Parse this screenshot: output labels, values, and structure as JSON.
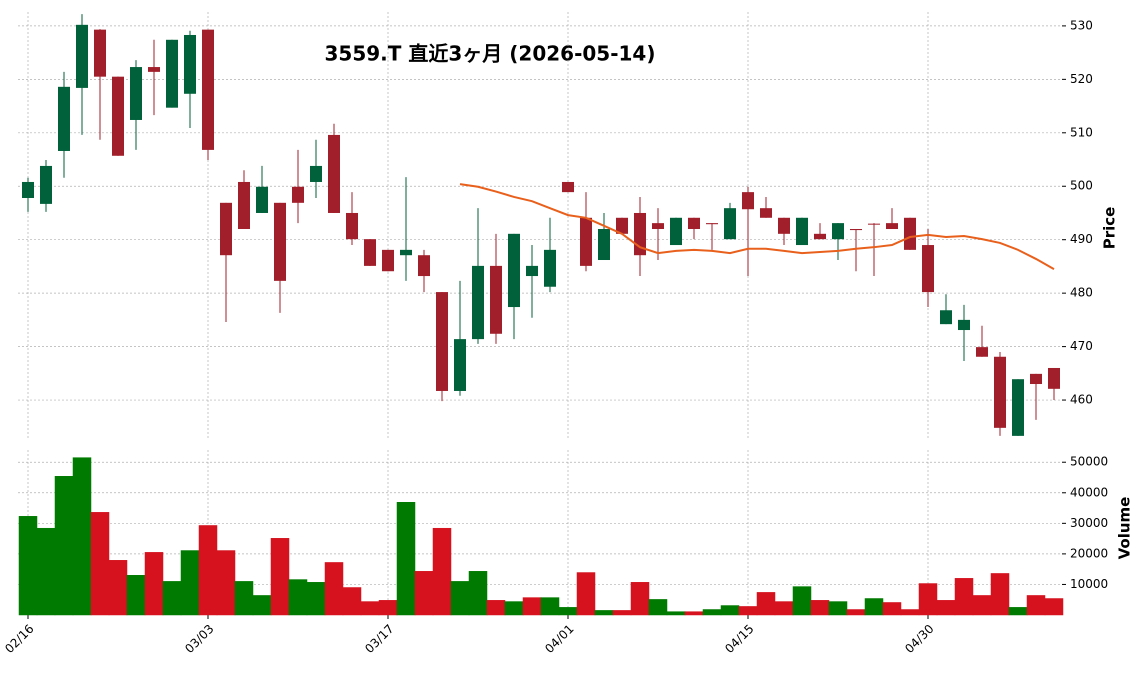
{
  "chart_data": {
    "type": "candlestick",
    "title": "3559.T  直近3ヶ月  (2026-05-14)",
    "categories": [
      "02/16",
      null,
      null,
      null,
      null,
      null,
      null,
      null,
      null,
      null,
      "03/03",
      null,
      null,
      null,
      null,
      null,
      null,
      null,
      null,
      null,
      "03/17",
      null,
      null,
      null,
      null,
      null,
      null,
      null,
      null,
      null,
      "04/01",
      null,
      null,
      null,
      null,
      null,
      null,
      null,
      null,
      null,
      "04/15",
      null,
      null,
      null,
      null,
      null,
      null,
      null,
      null,
      null,
      "04/30",
      null,
      null,
      null,
      null,
      null,
      null,
      null
    ],
    "open": [
      497.8,
      496.7,
      506.6,
      518.4,
      529.3,
      520.5,
      512.4,
      522.3,
      514.7,
      517.3,
      529.3,
      496.9,
      500.8,
      495.0,
      496.9,
      499.9,
      500.8,
      509.6,
      495.0,
      490.1,
      488.1,
      487.1,
      487.1,
      480.2,
      461.7,
      471.4,
      485.1,
      477.4,
      483.2,
      481.2,
      500.8,
      494.1,
      486.2,
      494.1,
      495.0,
      493.1,
      489.0,
      494.1,
      493.1,
      490.1,
      498.9,
      495.9,
      494.1,
      489.0,
      491.1,
      490.1,
      492.0,
      493.0,
      493.1,
      494.1,
      489.0,
      474.2,
      473.1,
      469.9,
      468.1,
      453.3,
      464.9,
      466.0
    ],
    "high": [
      501.6,
      504.9,
      521.4,
      532.2,
      529.4,
      520.5,
      523.6,
      527.4,
      527.4,
      529.1,
      529.3,
      496.9,
      503.0,
      503.8,
      496.9,
      506.8,
      508.7,
      511.7,
      498.9,
      490.1,
      488.1,
      501.7,
      488.1,
      480.2,
      482.3,
      495.9,
      491.1,
      491.1,
      489.0,
      494.1,
      500.8,
      498.9,
      495.0,
      494.1,
      498.0,
      495.9,
      494.1,
      494.1,
      493.1,
      496.9,
      499.9,
      498.0,
      494.1,
      494.1,
      493.1,
      493.1,
      492.0,
      493.1,
      495.9,
      494.1,
      492.0,
      479.8,
      477.8,
      473.9,
      469.0,
      463.9,
      464.9,
      466.0
    ],
    "low": [
      495.2,
      495.2,
      501.6,
      509.6,
      508.7,
      505.7,
      506.8,
      513.3,
      514.7,
      510.9,
      504.9,
      474.6,
      492.0,
      495.0,
      476.3,
      493.1,
      497.8,
      495.0,
      489.0,
      485.1,
      484.1,
      482.3,
      480.2,
      459.8,
      460.8,
      470.5,
      470.5,
      471.4,
      475.4,
      480.2,
      498.9,
      484.1,
      486.2,
      491.1,
      483.2,
      486.2,
      489.0,
      490.1,
      488.1,
      490.1,
      483.2,
      494.1,
      489.0,
      489.0,
      490.1,
      486.2,
      484.1,
      483.2,
      492.0,
      488.1,
      477.4,
      474.2,
      467.3,
      468.1,
      453.3,
      453.3,
      456.3,
      460.0
    ],
    "close": [
      500.8,
      503.8,
      518.6,
      530.2,
      520.5,
      505.7,
      522.3,
      521.4,
      527.4,
      528.3,
      506.8,
      487.1,
      492.0,
      499.9,
      482.3,
      496.9,
      503.8,
      495.0,
      490.1,
      485.1,
      484.1,
      488.1,
      483.2,
      461.7,
      471.4,
      485.1,
      472.4,
      491.1,
      485.1,
      488.1,
      498.9,
      485.1,
      492.0,
      491.1,
      487.1,
      492.0,
      494.1,
      492.0,
      492.9,
      495.9,
      495.7,
      494.1,
      491.1,
      494.1,
      490.1,
      493.1,
      491.8,
      492.9,
      492.0,
      488.1,
      480.2,
      476.8,
      475.0,
      468.1,
      454.8,
      463.9,
      463.0,
      462.1
    ],
    "up_color": "#00613a",
    "down_color": "#a11f2b",
    "ylim": [
      452.9,
      532.6
    ],
    "yticks": [
      460,
      470,
      480,
      490,
      500,
      510,
      520,
      530
    ],
    "ylabel": "Price",
    "grid": true,
    "moving_average": {
      "color": "#e8601c",
      "values": [
        null,
        null,
        null,
        null,
        null,
        null,
        null,
        null,
        null,
        null,
        null,
        null,
        null,
        null,
        null,
        null,
        null,
        null,
        null,
        null,
        null,
        null,
        null,
        null,
        500.4,
        499.9,
        499.0,
        498.0,
        497.2,
        495.9,
        494.6,
        494.1,
        492.6,
        491.1,
        488.6,
        487.5,
        487.9,
        488.1,
        487.9,
        487.5,
        488.3,
        488.3,
        487.9,
        487.5,
        487.7,
        487.9,
        488.3,
        488.6,
        489.0,
        490.5,
        490.9,
        490.5,
        490.7,
        490.1,
        489.4,
        488.1,
        486.4,
        484.5
      ]
    },
    "volume": {
      "values": [
        32300,
        28400,
        45400,
        51500,
        33600,
        17900,
        13000,
        20500,
        11000,
        21100,
        29300,
        21100,
        11000,
        6400,
        25100,
        11600,
        10700,
        17200,
        9000,
        4400,
        4800,
        36900,
        14300,
        28400,
        11000,
        14300,
        4800,
        4400,
        5700,
        5700,
        2500,
        13900,
        1500,
        1500,
        10700,
        5100,
        1100,
        1100,
        1800,
        3100,
        2800,
        7400,
        4400,
        9300,
        4800,
        4400,
        1800,
        5400,
        4100,
        1800,
        10300,
        4800,
        12000,
        6400,
        13600,
        2500,
        6400,
        5400
      ],
      "up_color": "#007a00",
      "down_color": "#d5121e",
      "ylim": [
        0,
        54000
      ],
      "yticks": [
        10000,
        20000,
        30000,
        40000,
        50000
      ],
      "ylabel": "Volume"
    }
  }
}
